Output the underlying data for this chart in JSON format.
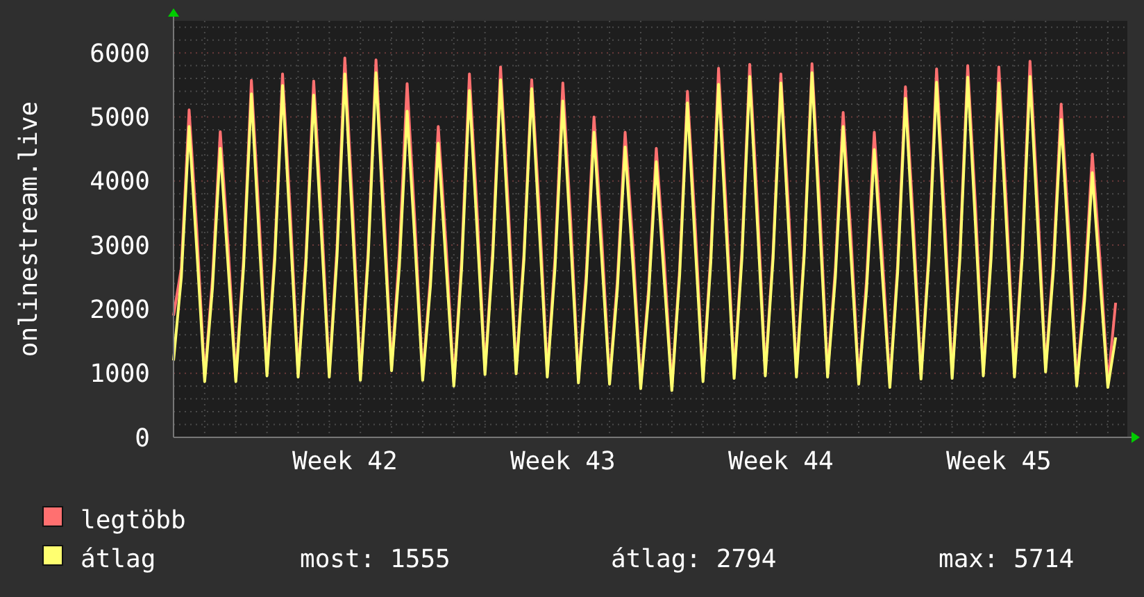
{
  "chart_data": {
    "type": "line",
    "ylabel": "onlinestream.live",
    "categories": [
      null,
      null,
      null,
      null,
      null,
      null,
      null,
      null,
      null,
      null,
      null,
      null,
      null,
      null,
      null,
      null,
      null,
      null,
      null,
      null,
      null,
      null,
      "Week 42",
      null,
      null,
      null,
      null,
      null,
      null,
      null,
      null,
      null,
      null,
      null,
      null,
      null,
      null,
      null,
      null,
      null,
      null,
      null,
      null,
      null,
      null,
      null,
      null,
      null,
      null,
      null,
      "Week 43",
      null,
      null,
      null,
      null,
      null,
      null,
      null,
      null,
      null,
      null,
      null,
      null,
      null,
      null,
      null,
      null,
      null,
      null,
      null,
      null,
      null,
      null,
      null,
      null,
      null,
      null,
      null,
      "Week 44",
      null,
      null,
      null,
      null,
      null,
      null,
      null,
      null,
      null,
      null,
      null,
      null,
      null,
      null,
      null,
      null,
      null,
      null,
      null,
      null,
      null,
      null,
      null,
      null,
      null,
      null,
      null,
      "Week 45",
      null,
      null,
      null,
      null,
      null,
      null,
      null,
      null,
      null,
      null,
      null,
      null,
      null,
      null,
      null
    ],
    "series": [
      {
        "name": "legtöbb",
        "color": "#ff7070",
        "values": [
          1900,
          2640,
          5110,
          3200,
          930,
          2470,
          4770,
          3000,
          930,
          2790,
          5570,
          3400,
          1020,
          2880,
          5670,
          3500,
          1000,
          2820,
          5560,
          3450,
          1000,
          2970,
          5920,
          3600,
          950,
          2930,
          5890,
          3600,
          1100,
          2870,
          5520,
          3350,
          950,
          2510,
          4850,
          3000,
          860,
          2780,
          5670,
          3500,
          1040,
          2940,
          5780,
          3600,
          1050,
          2860,
          5580,
          3500,
          1000,
          2810,
          5530,
          3400,
          910,
          2550,
          5000,
          3100,
          890,
          2440,
          4760,
          3000,
          820,
          2300,
          4510,
          2800,
          790,
          2630,
          5400,
          3300,
          930,
          2860,
          5760,
          3500,
          980,
          2920,
          5820,
          3600,
          1020,
          2880,
          5670,
          3550,
          1000,
          2930,
          5830,
          3600,
          1000,
          2630,
          5070,
          3150,
          890,
          2440,
          4760,
          2900,
          840,
          2690,
          5470,
          3400,
          970,
          2880,
          5750,
          3550,
          980,
          2910,
          5800,
          3600,
          1020,
          2920,
          5780,
          3550,
          1000,
          2950,
          5870,
          3600,
          1080,
          2730,
          5200,
          3200,
          860,
          2290,
          4420,
          2750,
          840,
          2100
        ]
      },
      {
        "name": "átlag",
        "color": "#ffff70",
        "values": [
          1200,
          2500,
          4850,
          2900,
          870,
          2330,
          4510,
          2700,
          870,
          2670,
          5360,
          3100,
          960,
          2770,
          5490,
          3200,
          940,
          2700,
          5340,
          3150,
          940,
          2830,
          5670,
          3300,
          890,
          2810,
          5690,
          3300,
          1040,
          2660,
          5090,
          3050,
          890,
          2370,
          4590,
          2700,
          800,
          2640,
          5410,
          3200,
          980,
          2820,
          5580,
          3300,
          990,
          2770,
          5440,
          3200,
          940,
          2660,
          5250,
          3100,
          850,
          2410,
          4760,
          2800,
          830,
          2310,
          4530,
          2700,
          760,
          2180,
          4300,
          2500,
          730,
          2530,
          5220,
          3000,
          870,
          2730,
          5510,
          3200,
          920,
          2800,
          5630,
          3300,
          960,
          2790,
          5530,
          3250,
          940,
          2840,
          5690,
          3300,
          940,
          2500,
          4850,
          2850,
          830,
          2290,
          4490,
          2600,
          780,
          2580,
          5290,
          3100,
          910,
          2760,
          5540,
          3250,
          920,
          2800,
          5620,
          3300,
          960,
          2790,
          5530,
          3250,
          940,
          2820,
          5630,
          3300,
          1020,
          2600,
          4960,
          2900,
          800,
          2130,
          4130,
          2450,
          780,
          1560
        ]
      }
    ],
    "ylim": [
      0,
      6500
    ],
    "yticks": [
      0,
      {
        "value": 200,
        "label": null
      },
      {
        "value": 400,
        "label": null
      },
      {
        "value": 600,
        "label": null
      },
      {
        "value": 800,
        "label": null
      },
      1000,
      {
        "value": 1200,
        "label": null
      },
      {
        "value": 1400,
        "label": null
      },
      {
        "value": 1600,
        "label": null
      },
      {
        "value": 1800,
        "label": null
      },
      2000,
      {
        "value": 2200,
        "label": null
      },
      {
        "value": 2400,
        "label": null
      },
      {
        "value": 2600,
        "label": null
      },
      {
        "value": 2800,
        "label": null
      },
      3000,
      {
        "value": 3200,
        "label": null
      },
      {
        "value": 3400,
        "label": null
      },
      {
        "value": 3600,
        "label": null
      },
      {
        "value": 3800,
        "label": null
      },
      4000,
      {
        "value": 4200,
        "label": null
      },
      {
        "value": 4400,
        "label": null
      },
      {
        "value": 4600,
        "label": null
      },
      {
        "value": 4800,
        "label": null
      },
      5000,
      {
        "value": 5200,
        "label": null
      },
      {
        "value": 5400,
        "label": null
      },
      {
        "value": 5600,
        "label": null
      },
      {
        "value": 5800,
        "label": null
      },
      6000,
      {
        "value": 6200,
        "label": null
      },
      {
        "value": 6400,
        "label": null
      }
    ],
    "grid": true,
    "legend": "bottom",
    "marker": "none",
    "line_style": "solid",
    "annotations": [
      "most: 1555",
      "átlag: 2794",
      "max: 5714"
    ]
  }
}
